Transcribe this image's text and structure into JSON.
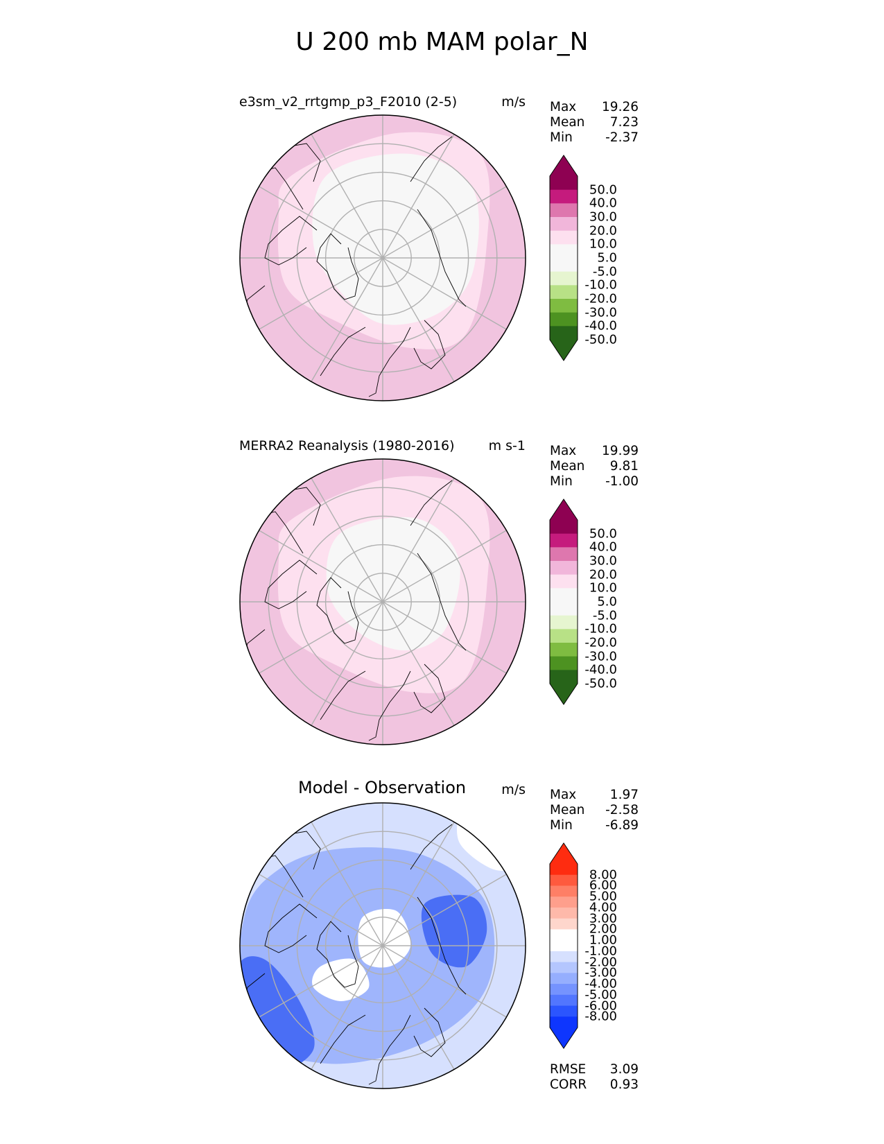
{
  "figure_title": "U 200 mb MAM polar_N",
  "panels": [
    {
      "id": "test",
      "title": "e3sm_v2_rrtgmp_p3_F2010 (2-5)",
      "units": "m/s",
      "stats": [
        {
          "label": "Max",
          "value": "19.26"
        },
        {
          "label": "Mean",
          "value": "7.23"
        },
        {
          "label": "Min",
          "value": "-2.37"
        }
      ],
      "colorbar": {
        "labels": [
          "50.0",
          "40.0",
          "30.0",
          "20.0",
          "10.0",
          "5.0",
          "-5.0",
          "-10.0",
          "-20.0",
          "-30.0",
          "-40.0",
          "-50.0"
        ],
        "colors": [
          "#8e0152",
          "#c51b7d",
          "#de77ae",
          "#f1b6da",
          "#fde0ef",
          "#f7f7f7",
          "#f7f7f7",
          "#e6f5d0",
          "#b8e186",
          "#7fbc41",
          "#4d9221",
          "#276419"
        ],
        "top_color": "#8e0152",
        "bottom_color": "#276419"
      }
    },
    {
      "id": "reference",
      "title": "MERRA2 Reanalysis (1980-2016)",
      "units": "m s-1",
      "stats": [
        {
          "label": "Max",
          "value": "19.99"
        },
        {
          "label": "Mean",
          "value": "9.81"
        },
        {
          "label": "Min",
          "value": "-1.00"
        }
      ],
      "colorbar": {
        "labels": [
          "50.0",
          "40.0",
          "30.0",
          "20.0",
          "10.0",
          "5.0",
          "-5.0",
          "-10.0",
          "-20.0",
          "-30.0",
          "-40.0",
          "-50.0"
        ],
        "colors": [
          "#8e0152",
          "#c51b7d",
          "#de77ae",
          "#f1b6da",
          "#fde0ef",
          "#f7f7f7",
          "#f7f7f7",
          "#e6f5d0",
          "#b8e186",
          "#7fbc41",
          "#4d9221",
          "#276419"
        ],
        "top_color": "#8e0152",
        "bottom_color": "#276419"
      }
    },
    {
      "id": "difference",
      "title": "Model - Observation",
      "units": "m/s",
      "stats": [
        {
          "label": "Max",
          "value": "1.97"
        },
        {
          "label": "Mean",
          "value": "-2.58"
        },
        {
          "label": "Min",
          "value": "-6.89"
        }
      ],
      "colorbar": {
        "labels": [
          "8.00",
          "6.00",
          "5.00",
          "4.00",
          "3.00",
          "2.00",
          "1.00",
          "-1.00",
          "-2.00",
          "-3.00",
          "-4.00",
          "-5.00",
          "-6.00",
          "-8.00"
        ],
        "colors": [
          "#fe2c10",
          "#fe5a3e",
          "#fe7f66",
          "#fe9f8c",
          "#feb9aa",
          "#fed6cc",
          "#ffffff",
          "#ffffff",
          "#d6e0fe",
          "#b4c6fe",
          "#95aefe",
          "#7593fe",
          "#5276fe",
          "#2b55fe",
          "#0e36fe"
        ],
        "top_color": "#fe2c10",
        "bottom_color": "#0e36fe"
      },
      "extra_stats": [
        {
          "label": "RMSE",
          "value": "3.09"
        },
        {
          "label": "CORR",
          "value": "0.93"
        }
      ]
    }
  ],
  "colors": {
    "grid": "#b0b0b0",
    "coast": "#000000",
    "pink_light": "#fde0ef",
    "pink_mid": "#f1c4df",
    "white_region": "#f7f7f7",
    "diff_light": "#d6e0fe",
    "diff_mid": "#9fb5fc",
    "diff_dark": "#4a6ef5",
    "diff_pos": "#fde6e0"
  }
}
